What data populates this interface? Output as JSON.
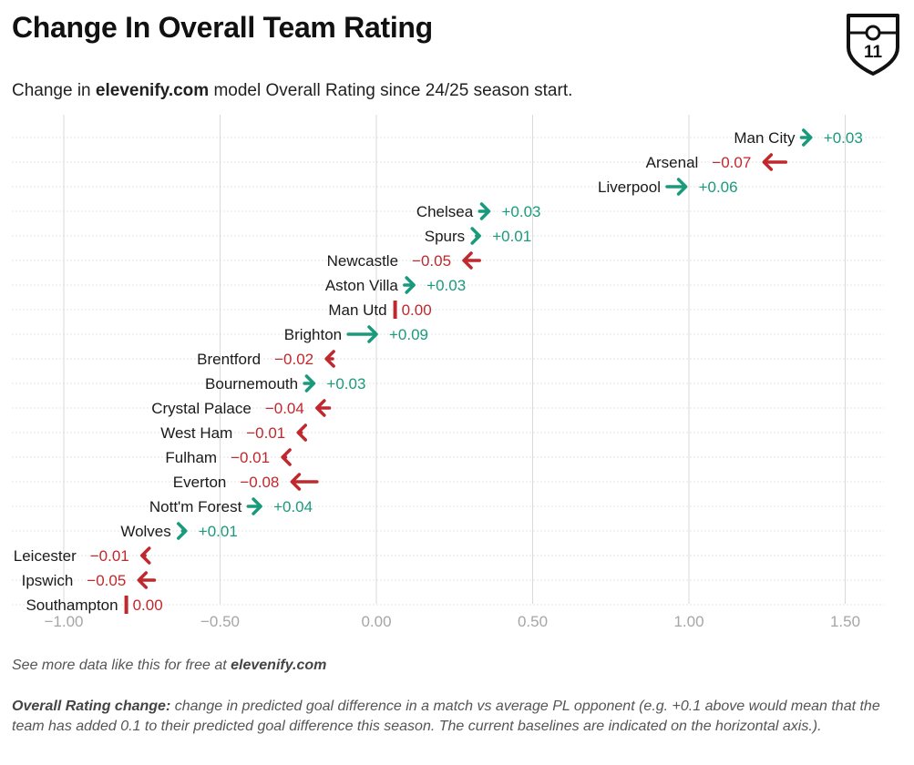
{
  "title": "Change In Overall Team Rating",
  "subtitle": {
    "prefix": "Change in ",
    "brand": "elevenify.com",
    "suffix": " model Overall Rating since 24/25 season start."
  },
  "footer": {
    "source_prefix": "See more data like this for free at ",
    "source_brand": "elevenify.com",
    "note_label": "Overall Rating change:",
    "note_text": " change in predicted goal difference in a match vs average PL opponent (e.g. +0.1 above would mean that the team has added 0.1 to their predicted goal difference this season. The current baselines are indicated on the horizontal axis.)."
  },
  "logo": {
    "text": "11",
    "icon": "shield-icon"
  },
  "colors": {
    "positive": "#1a9a7d",
    "negative": "#c0282d",
    "grid": "#d9d9d9",
    "tick": "#a6a6a6"
  },
  "chart_data": {
    "type": "scatter",
    "title": "Change In Overall Team Rating",
    "xlabel": "",
    "ylabel": "",
    "xlim": [
      -1.1,
      1.62
    ],
    "x_ticks": [
      -1.0,
      -0.5,
      0.0,
      0.5,
      1.0,
      1.5
    ],
    "x_tick_labels": [
      "−1.00",
      "−0.50",
      "0.00",
      "0.50",
      "1.00",
      "1.50"
    ],
    "grid": true,
    "teams": [
      {
        "team": "Man City",
        "rating": 1.39,
        "change": 0.03,
        "label": "+0.03"
      },
      {
        "team": "Arsenal",
        "rating": 1.24,
        "change": -0.07,
        "label": "−0.07"
      },
      {
        "team": "Liverpool",
        "rating": 0.99,
        "change": 0.06,
        "label": "+0.06"
      },
      {
        "team": "Chelsea",
        "rating": 0.36,
        "change": 0.03,
        "label": "+0.03"
      },
      {
        "team": "Spurs",
        "rating": 0.33,
        "change": 0.01,
        "label": "+0.01"
      },
      {
        "team": "Newcastle",
        "rating": 0.28,
        "change": -0.05,
        "label": "−0.05"
      },
      {
        "team": "Aston Villa",
        "rating": 0.12,
        "change": 0.03,
        "label": "+0.03"
      },
      {
        "team": "Man Utd",
        "rating": 0.06,
        "change": 0.0,
        "label": "0.00"
      },
      {
        "team": "Brighton",
        "rating": 0.0,
        "change": 0.09,
        "label": "+0.09"
      },
      {
        "team": "Brentford",
        "rating": -0.16,
        "change": -0.02,
        "label": "−0.02"
      },
      {
        "team": "Bournemouth",
        "rating": -0.2,
        "change": 0.03,
        "label": "+0.03"
      },
      {
        "team": "Crystal Palace",
        "rating": -0.19,
        "change": -0.04,
        "label": "−0.04"
      },
      {
        "team": "West Ham",
        "rating": -0.25,
        "change": -0.01,
        "label": "−0.01"
      },
      {
        "team": "Fulham",
        "rating": -0.3,
        "change": -0.01,
        "label": "−0.01"
      },
      {
        "team": "Everton",
        "rating": -0.27,
        "change": -0.08,
        "label": "−0.08"
      },
      {
        "team": "Nott'm Forest",
        "rating": -0.37,
        "change": 0.04,
        "label": "+0.04"
      },
      {
        "team": "Wolves",
        "rating": -0.61,
        "change": 0.01,
        "label": "+0.01"
      },
      {
        "team": "Leicester",
        "rating": -0.75,
        "change": -0.01,
        "label": "−0.01"
      },
      {
        "team": "Ipswich",
        "rating": -0.76,
        "change": -0.05,
        "label": "−0.05"
      },
      {
        "team": "Southampton",
        "rating": -0.8,
        "change": 0.0,
        "label": "0.00"
      }
    ]
  }
}
